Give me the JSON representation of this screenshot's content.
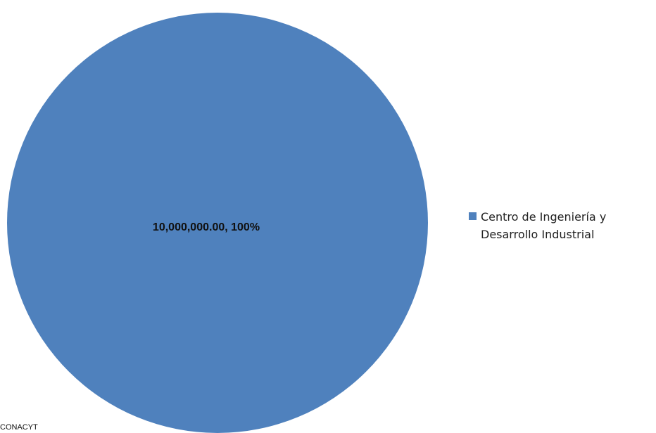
{
  "chart_data": {
    "type": "pie",
    "categories": [
      "Centro de Ingeniería y Desarrollo Industrial"
    ],
    "values": [
      10000000.0
    ],
    "percentages": [
      100
    ],
    "data_labels": [
      "10,000,000.00, 100%"
    ],
    "colors": [
      "#4f81bd"
    ],
    "legend": {
      "placement": "right",
      "entries": [
        "Centro de Ingeniería y Desarrollo Industrial"
      ]
    },
    "title": ""
  },
  "footer": {
    "source_text": "CONACYT"
  }
}
